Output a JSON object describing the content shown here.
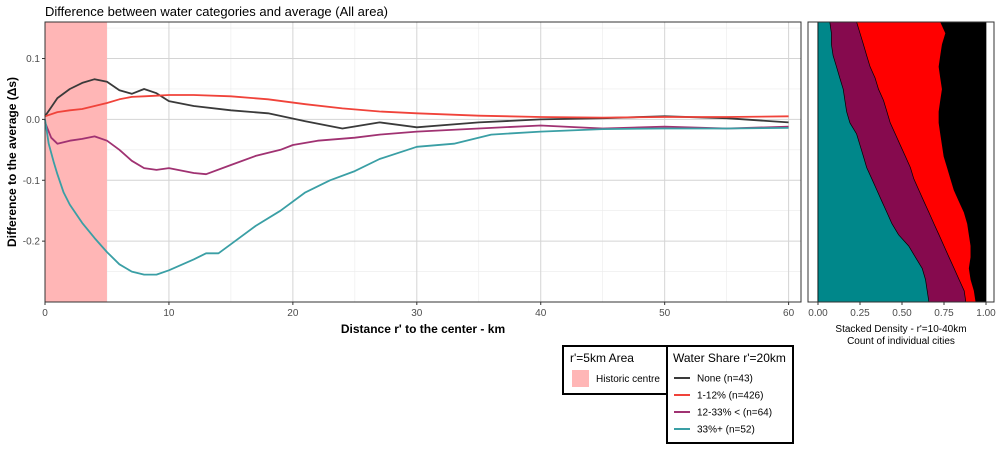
{
  "chart_data": [
    {
      "type": "line",
      "title": "Difference between water categories and average (All area)",
      "xlabel": "Distance r' to the center - km",
      "ylabel": "Difference to the average (Δs)",
      "xlim": [
        0,
        61
      ],
      "ylim": [
        -0.3,
        0.16
      ],
      "xticks": [
        "0",
        "10",
        "20",
        "30",
        "40",
        "50",
        "60"
      ],
      "yticks": [
        "0.1",
        "0.0",
        "-0.1",
        "-0.2"
      ],
      "xtick_values": [
        0,
        10,
        20,
        30,
        40,
        50,
        60
      ],
      "ytick_values": [
        0.1,
        0.0,
        -0.1,
        -0.2
      ],
      "grid": true,
      "shaded_region": {
        "x": [
          0,
          5
        ],
        "label": "Historic centre",
        "color": "#ffb6b6"
      },
      "series": [
        {
          "name": "None (n=43)",
          "color": "#3a3a3a",
          "x": [
            0,
            0.5,
            1,
            2,
            3,
            4,
            5,
            6,
            7,
            8,
            9,
            10,
            12,
            15,
            18,
            21,
            24,
            27,
            30,
            35,
            40,
            45,
            50,
            55,
            60
          ],
          "y": [
            0.005,
            0.02,
            0.035,
            0.05,
            0.06,
            0.066,
            0.062,
            0.048,
            0.042,
            0.05,
            0.043,
            0.03,
            0.022,
            0.015,
            0.01,
            -0.003,
            -0.015,
            -0.005,
            -0.013,
            -0.005,
            0.0,
            0.002,
            0.005,
            0.002,
            -0.005
          ]
        },
        {
          "name": "1-12% (n=426)",
          "color": "#f0433a",
          "x": [
            0,
            1,
            2,
            3,
            4,
            5,
            6,
            7,
            8,
            9,
            10,
            12,
            15,
            18,
            21,
            24,
            27,
            30,
            35,
            40,
            45,
            50,
            55,
            60
          ],
          "y": [
            0.005,
            0.012,
            0.015,
            0.017,
            0.022,
            0.027,
            0.033,
            0.037,
            0.038,
            0.039,
            0.04,
            0.04,
            0.038,
            0.033,
            0.025,
            0.018,
            0.013,
            0.01,
            0.006,
            0.004,
            0.003,
            0.004,
            0.004,
            0.005
          ]
        },
        {
          "name": "12-33% < (n=64)",
          "color": "#a03272",
          "x": [
            0,
            0.5,
            1,
            2,
            3,
            4,
            5,
            6,
            7,
            8,
            9,
            10,
            12,
            13,
            15,
            17,
            19,
            20,
            22,
            25,
            27,
            30,
            35,
            40,
            45,
            50,
            55,
            60
          ],
          "y": [
            -0.005,
            -0.03,
            -0.04,
            -0.035,
            -0.032,
            -0.028,
            -0.035,
            -0.05,
            -0.068,
            -0.08,
            -0.083,
            -0.08,
            -0.088,
            -0.09,
            -0.075,
            -0.06,
            -0.05,
            -0.042,
            -0.035,
            -0.03,
            -0.025,
            -0.02,
            -0.015,
            -0.01,
            -0.015,
            -0.012,
            -0.015,
            -0.012
          ]
        },
        {
          "name": "33%+ (n=52)",
          "color": "#3a9fa5",
          "x": [
            0,
            0.3,
            0.7,
            1,
            1.5,
            2,
            3,
            4,
            5,
            6,
            7,
            8,
            9,
            10,
            12,
            13,
            14,
            15,
            17,
            19,
            21,
            23,
            25,
            27,
            30,
            33,
            36,
            40,
            45,
            50,
            55,
            60
          ],
          "y": [
            0.0,
            -0.04,
            -0.07,
            -0.09,
            -0.12,
            -0.14,
            -0.17,
            -0.195,
            -0.218,
            -0.238,
            -0.25,
            -0.255,
            -0.255,
            -0.248,
            -0.23,
            -0.22,
            -0.22,
            -0.205,
            -0.175,
            -0.15,
            -0.12,
            -0.1,
            -0.085,
            -0.065,
            -0.045,
            -0.04,
            -0.025,
            -0.02,
            -0.016,
            -0.015,
            -0.015,
            -0.014
          ]
        }
      ]
    },
    {
      "type": "area",
      "xlabel_line1": "Stacked Density - r'=10-40km",
      "xlabel_line2": "Count of individual cities",
      "xlim": [
        0,
        1
      ],
      "xticks": [
        "0.00",
        "0.25",
        "0.50",
        "0.75",
        "1.00"
      ],
      "xtick_values": [
        0,
        0.25,
        0.5,
        0.75,
        1.0
      ],
      "stacked": true,
      "y": [
        0,
        0.04,
        0.08,
        0.12,
        0.16,
        0.2,
        0.24,
        0.28,
        0.32,
        0.36,
        0.4,
        0.44,
        0.48,
        0.52,
        0.56,
        0.6,
        0.64,
        0.68,
        0.72,
        0.76,
        0.8,
        0.84,
        0.88,
        0.92,
        0.96,
        1.0
      ],
      "series": [
        {
          "name": "33%+",
          "color": "#00878a",
          "cum": [
            0.07,
            0.08,
            0.08,
            0.09,
            0.11,
            0.13,
            0.15,
            0.16,
            0.17,
            0.19,
            0.23,
            0.25,
            0.27,
            0.29,
            0.32,
            0.35,
            0.38,
            0.41,
            0.44,
            0.48,
            0.54,
            0.58,
            0.62,
            0.64,
            0.65,
            0.66
          ]
        },
        {
          "name": "12-33% <",
          "color": "#860a4e",
          "cum": [
            0.23,
            0.25,
            0.27,
            0.29,
            0.31,
            0.34,
            0.36,
            0.39,
            0.41,
            0.43,
            0.46,
            0.49,
            0.52,
            0.55,
            0.57,
            0.6,
            0.63,
            0.66,
            0.69,
            0.72,
            0.75,
            0.78,
            0.81,
            0.84,
            0.87,
            0.88
          ]
        },
        {
          "name": "1-12%",
          "color": "#ff0000",
          "cum": [
            0.73,
            0.76,
            0.74,
            0.73,
            0.72,
            0.73,
            0.74,
            0.73,
            0.72,
            0.72,
            0.73,
            0.74,
            0.75,
            0.77,
            0.79,
            0.81,
            0.84,
            0.87,
            0.89,
            0.9,
            0.91,
            0.91,
            0.9,
            0.91,
            0.93,
            0.94
          ]
        },
        {
          "name": "None",
          "color": "#000000",
          "cum": [
            1,
            1,
            1,
            1,
            1,
            1,
            1,
            1,
            1,
            1,
            1,
            1,
            1,
            1,
            1,
            1,
            1,
            1,
            1,
            1,
            1,
            1,
            1,
            1,
            1,
            1
          ]
        }
      ]
    }
  ],
  "legend_area": {
    "title": "r'=5km Area",
    "items": [
      {
        "label": "Historic centre",
        "color": "#ffb6b6"
      }
    ]
  },
  "legend_water": {
    "title": "Water Share r'=20km",
    "items": [
      {
        "label": "None (n=43)",
        "color": "#3a3a3a"
      },
      {
        "label": "1-12% (n=426)",
        "color": "#f0433a"
      },
      {
        "label": "12-33% < (n=64)",
        "color": "#a03272"
      },
      {
        "label": "33%+ (n=52)",
        "color": "#3a9fa5"
      }
    ]
  }
}
